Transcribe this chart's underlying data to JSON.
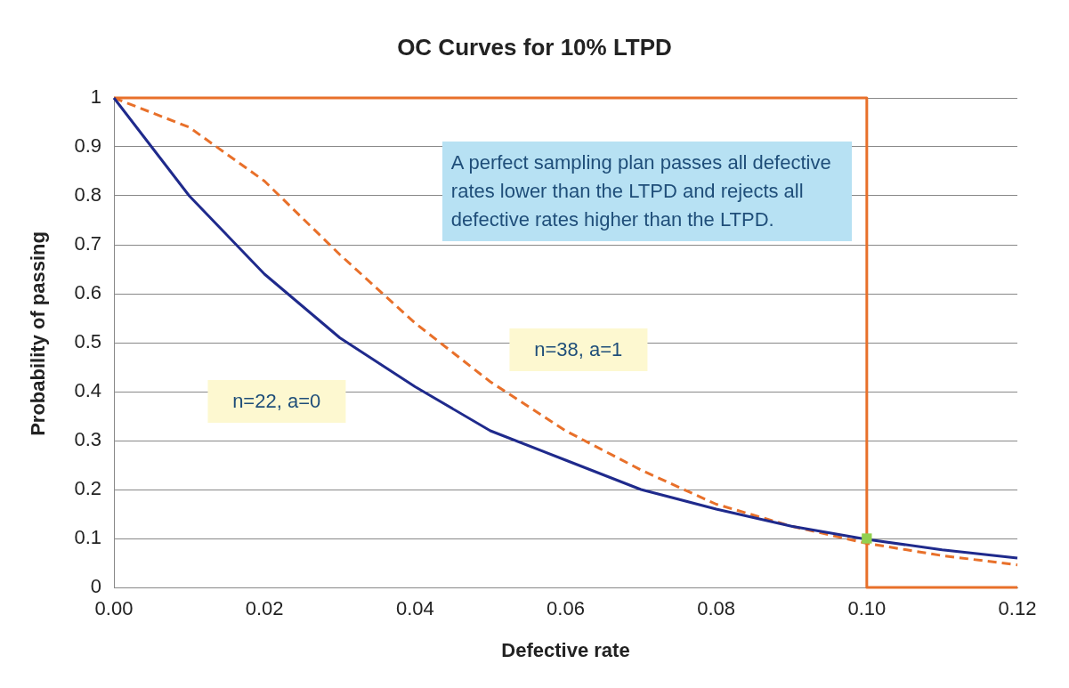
{
  "chart_data": {
    "type": "line",
    "title": "OC Curves for 10% LTPD",
    "xlabel": "Defective rate",
    "ylabel": "Probability of passing",
    "x": [
      0,
      0.01,
      0.02,
      0.03,
      0.04,
      0.05,
      0.06,
      0.07,
      0.08,
      0.09,
      0.1,
      0.11,
      0.12
    ],
    "series": [
      {
        "name": "n=22, a=0",
        "color": "#1f2a8c",
        "line_style": "solid",
        "values": [
          1,
          0.8,
          0.64,
          0.51,
          0.41,
          0.32,
          0.26,
          0.2,
          0.16,
          0.125,
          0.098,
          0.077,
          0.06
        ]
      },
      {
        "name": "n=38, a=1",
        "color": "#e8702a",
        "line_style": "dashed",
        "values": [
          1,
          0.94,
          0.83,
          0.68,
          0.54,
          0.42,
          0.32,
          0.24,
          0.17,
          0.125,
          0.09,
          0.065,
          0.046
        ]
      },
      {
        "type": "line",
        "color": "#e8702a",
        "line_style": "solid",
        "x": [
          0,
          0.1,
          0.1,
          0.12
        ],
        "values": [
          1,
          1,
          0,
          0
        ]
      },
      {
        "type": "scatter",
        "color": "#92d050",
        "marker": "square",
        "x": [
          0.1
        ],
        "values": [
          0.1
        ]
      }
    ],
    "annotations": [
      "A perfect sampling plan passes all defective rates lower than the LTPD and rejects all defective rates higher than the LTPD."
    ],
    "xlim": [
      0,
      0.12
    ],
    "xticks": [
      {
        "value": 0,
        "label": "0.00"
      },
      {
        "value": 0.02,
        "label": "0.02"
      },
      {
        "value": 0.04,
        "label": "0.04"
      },
      {
        "value": 0.06,
        "label": "0.06"
      },
      {
        "value": 0.08,
        "label": "0.08"
      },
      {
        "value": 0.1,
        "label": "0.10"
      },
      {
        "value": 0.12,
        "label": "0.12"
      }
    ],
    "ylim": [
      0,
      1
    ],
    "yticks": [
      0,
      0.1,
      0.2,
      0.3,
      0.4,
      0.5,
      0.6,
      0.7,
      0.8,
      0.9,
      1
    ],
    "grid": "y",
    "legend": false,
    "marker": "none"
  }
}
